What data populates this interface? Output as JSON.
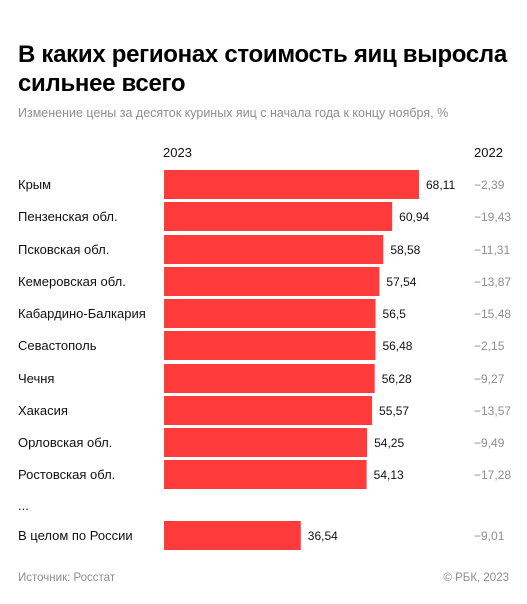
{
  "title": "В каких регионах стоимость яиц выросла сильнее всего",
  "subtitle": "Изменение цены за десяток куриных яиц с начала года к концу ноября, %",
  "columns": {
    "current": "2023",
    "previous": "2022"
  },
  "ellipsis": "...",
  "source": "Источник: Росстат",
  "copyright": "© РБК, 2023",
  "colors": {
    "bar": "#ff3b3b",
    "text": "#111111",
    "muted": "#8e8e8e"
  },
  "chart_data": {
    "type": "bar",
    "orientation": "horizontal",
    "categories": [
      "Крым",
      "Пензенская обл.",
      "Псковская обл.",
      "Кемеровская обл.",
      "Кабардино-Балкария",
      "Севастополь",
      "Чечня",
      "Хакасия",
      "Орловская обл.",
      "Ростовская обл.",
      "В целом по России"
    ],
    "series": [
      {
        "name": "2023",
        "values": [
          68.11,
          60.94,
          58.58,
          57.54,
          56.5,
          56.48,
          56.28,
          55.57,
          54.25,
          54.13,
          36.54
        ],
        "labels": [
          "68,11",
          "60,94",
          "58,58",
          "57,54",
          "56,5",
          "56,48",
          "56,28",
          "55,57",
          "54,25",
          "54,13",
          "36,54"
        ]
      },
      {
        "name": "2022",
        "values": [
          -2.39,
          -19.43,
          -11.31,
          -13.87,
          -15.48,
          -2.15,
          -9.27,
          -13.57,
          -9.49,
          -17.28,
          -9.01
        ],
        "labels": [
          "−2,39",
          "−19,43",
          "−11,31",
          "−13,87",
          "−15,48",
          "−2,15",
          "−9,27",
          "−13,57",
          "−9,49",
          "−17,28",
          "−9,01"
        ]
      }
    ],
    "xlim": [
      0,
      68.11
    ],
    "grid": false,
    "legend": "none"
  }
}
